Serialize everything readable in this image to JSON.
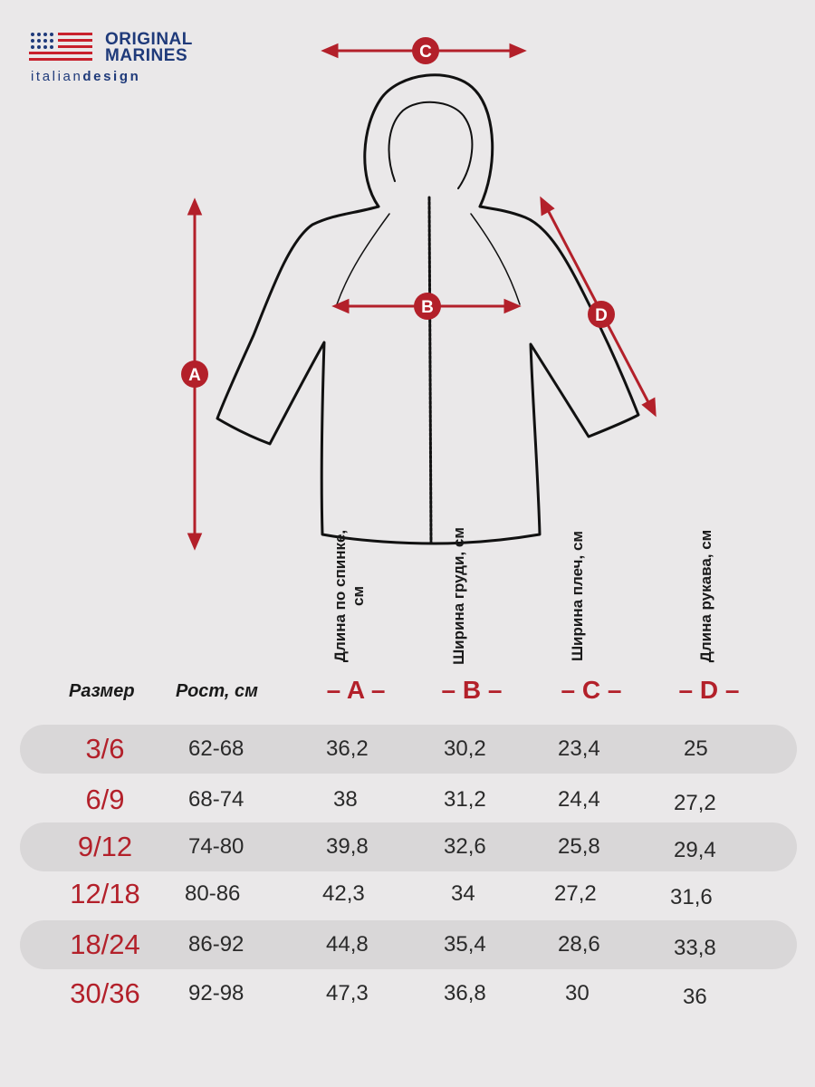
{
  "brand": {
    "name_line1": "ORIGINAL",
    "name_line2": "MARINES",
    "tagline_light1": "italian",
    "tagline_bold": "design"
  },
  "diagram": {
    "labels": {
      "a": "A",
      "b": "B",
      "c": "C",
      "d": "D"
    },
    "colors": {
      "accent": "#b3202a",
      "outline": "#111111",
      "logo": "#1f3a7a"
    }
  },
  "table": {
    "col_headers": {
      "a": "Длина по спинке, см",
      "b": "Ширина груди, см",
      "c": "Ширина плеч, см",
      "d": "Длина рукава, см"
    },
    "header_size": "Размер",
    "header_height": "Рост, см",
    "letters": {
      "a": "– A –",
      "b": "– B –",
      "c": "– C –",
      "d": "– D –"
    },
    "rows": [
      {
        "size": "3/6",
        "height": "62-68",
        "a": "36,2",
        "b": "30,2",
        "c": "23,4",
        "d": "25"
      },
      {
        "size": "6/9",
        "height": "68-74",
        "a": "38",
        "b": "31,2",
        "c": "24,4",
        "d": "27,2"
      },
      {
        "size": "9/12",
        "height": "74-80",
        "a": "39,8",
        "b": "32,6",
        "c": "25,8",
        "d": "29,4"
      },
      {
        "size": "12/18",
        "height": "80-86",
        "a": "42,3",
        "b": "34",
        "c": "27,2",
        "d": "31,6"
      },
      {
        "size": "18/24",
        "height": "86-92",
        "a": "44,8",
        "b": "35,4",
        "c": "28,6",
        "d": "33,8"
      },
      {
        "size": "30/36",
        "height": "92-98",
        "a": "47,3",
        "b": "36,8",
        "c": "30",
        "d": "36"
      }
    ]
  }
}
